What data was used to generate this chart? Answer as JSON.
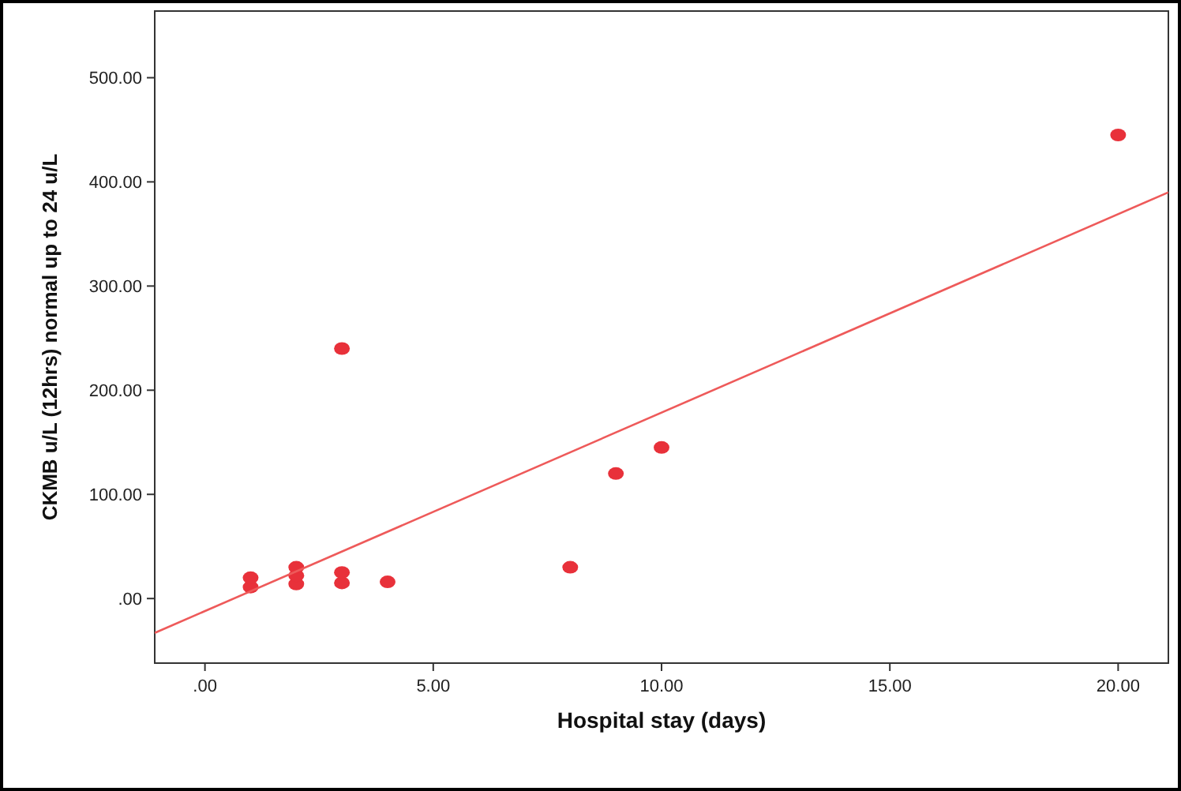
{
  "chart_data": {
    "type": "scatter",
    "xlabel": "Hospital stay (days)",
    "ylabel": "CKMB u/L (12hrs) normal up to 24 u/L",
    "xlim": [
      -1.1,
      21.1
    ],
    "ylim": [
      -62,
      564
    ],
    "xticks": [
      {
        "value": 0,
        "label": ".00"
      },
      {
        "value": 5,
        "label": "5.00"
      },
      {
        "value": 10,
        "label": "10.00"
      },
      {
        "value": 15,
        "label": "15.00"
      },
      {
        "value": 20,
        "label": "20.00"
      }
    ],
    "yticks": [
      {
        "value": 0,
        "label": ".00"
      },
      {
        "value": 100,
        "label": "100.00"
      },
      {
        "value": 200,
        "label": "200.00"
      },
      {
        "value": 300,
        "label": "300.00"
      },
      {
        "value": 400,
        "label": "400.00"
      },
      {
        "value": 500,
        "label": "500.00"
      }
    ],
    "grid": false,
    "series": [
      {
        "color": "#e8313a",
        "marker": "circle",
        "x": [
          1,
          1,
          2,
          2,
          2,
          3,
          3,
          3,
          4,
          8,
          9,
          10,
          20
        ],
        "values": [
          11,
          20,
          14,
          22,
          30,
          15,
          25,
          240,
          16,
          30,
          120,
          145,
          445
        ]
      },
      {
        "type": "line",
        "color": "#ee5a5a",
        "x": [
          -1.1,
          21.1
        ],
        "values": [
          -33,
          390
        ]
      }
    ]
  }
}
